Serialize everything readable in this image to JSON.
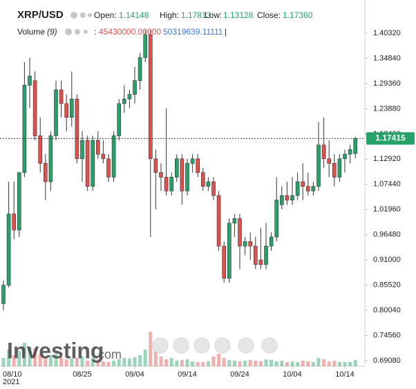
{
  "chart_data": {
    "type": "candlestick",
    "title": "XRP/USD",
    "header": {
      "open_label": "Open:",
      "open_value": "1.14148",
      "high_label": "High:",
      "high_value": "1.17813",
      "low_label": "Low:",
      "low_value": "1.13128",
      "close_label": "Close:",
      "close_value": "1.17360",
      "volume_label": "Volume",
      "volume_period": "(9)",
      "volume_sep": ":",
      "volume_value": "45430000.00000",
      "volume_ma_value": "50319639.11111",
      "volume_end": "|"
    },
    "watermark": "Investing",
    "watermark_suffix": ".com",
    "year_label": "2021",
    "up_color": "#26a269",
    "down_color": "#e0504d",
    "last_price": {
      "value": 1.17415,
      "label": "1.17415"
    },
    "x": [
      "2021-08-10",
      "2021-08-11",
      "2021-08-12",
      "2021-08-13",
      "2021-08-14",
      "2021-08-15",
      "2021-08-16",
      "2021-08-17",
      "2021-08-18",
      "2021-08-19",
      "2021-08-20",
      "2021-08-21",
      "2021-08-22",
      "2021-08-23",
      "2021-08-24",
      "2021-08-25",
      "2021-08-26",
      "2021-08-27",
      "2021-08-28",
      "2021-08-29",
      "2021-08-30",
      "2021-08-31",
      "2021-09-01",
      "2021-09-02",
      "2021-09-03",
      "2021-09-04",
      "2021-09-05",
      "2021-09-06",
      "2021-09-07",
      "2021-09-08",
      "2021-09-09",
      "2021-09-10",
      "2021-09-11",
      "2021-09-12",
      "2021-09-13",
      "2021-09-14",
      "2021-09-15",
      "2021-09-16",
      "2021-09-17",
      "2021-09-18",
      "2021-09-19",
      "2021-09-20",
      "2021-09-21",
      "2021-09-22",
      "2021-09-23",
      "2021-09-24",
      "2021-09-25",
      "2021-09-26",
      "2021-09-27",
      "2021-09-28",
      "2021-09-29",
      "2021-09-30",
      "2021-10-01",
      "2021-10-02",
      "2021-10-03",
      "2021-10-04",
      "2021-10-05",
      "2021-10-06",
      "2021-10-07",
      "2021-10-08",
      "2021-10-09",
      "2021-10-10",
      "2021-10-11",
      "2021-10-12",
      "2021-10-13",
      "2021-10-14",
      "2021-10-15",
      "2021-10-16"
    ],
    "open": [
      0.815,
      0.855,
      1.01,
      0.975,
      1.1,
      1.29,
      1.3,
      1.18,
      1.12,
      1.08,
      1.18,
      1.28,
      1.25,
      1.22,
      1.26,
      1.13,
      1.17,
      1.07,
      1.17,
      1.14,
      1.13,
      1.09,
      1.18,
      1.25,
      1.26,
      1.27,
      1.3,
      1.35,
      1.4,
      1.13,
      1.1,
      1.09,
      1.06,
      1.09,
      1.13,
      1.06,
      1.12,
      1.13,
      1.1,
      1.07,
      1.08,
      1.05,
      0.94,
      0.87,
      0.99,
      1.0,
      0.94,
      0.95,
      0.94,
      0.91,
      0.9,
      0.94,
      0.96,
      1.03,
      1.05,
      1.04,
      1.05,
      1.08,
      1.07,
      1.06,
      1.07,
      1.16,
      1.13,
      1.12,
      1.09,
      1.13,
      1.14,
      1.14148
    ],
    "high": [
      0.865,
      1.08,
      1.08,
      1.1,
      1.34,
      1.35,
      1.32,
      1.22,
      1.14,
      1.19,
      1.3,
      1.3,
      1.27,
      1.32,
      1.27,
      1.19,
      1.18,
      1.18,
      1.19,
      1.17,
      1.14,
      1.19,
      1.26,
      1.29,
      1.28,
      1.33,
      1.36,
      1.41,
      1.41,
      1.15,
      1.12,
      1.24,
      1.1,
      1.14,
      1.14,
      1.13,
      1.14,
      1.14,
      1.11,
      1.09,
      1.09,
      1.06,
      0.95,
      1.0,
      1.01,
      1.01,
      0.96,
      0.97,
      0.96,
      0.98,
      0.99,
      0.97,
      1.09,
      1.07,
      1.08,
      1.09,
      1.1,
      1.12,
      1.1,
      1.08,
      1.21,
      1.22,
      1.17,
      1.14,
      1.14,
      1.15,
      1.16,
      1.17813
    ],
    "low": [
      0.8,
      0.85,
      0.955,
      0.96,
      1.09,
      1.24,
      1.17,
      1.1,
      1.04,
      1.06,
      1.17,
      1.22,
      1.19,
      1.2,
      1.12,
      1.08,
      1.06,
      1.06,
      1.13,
      1.12,
      1.08,
      1.08,
      1.17,
      1.23,
      1.24,
      1.25,
      1.28,
      1.34,
      0.96,
      1.02,
      1.06,
      1.05,
      1.05,
      1.08,
      1.03,
      1.05,
      1.1,
      1.09,
      1.06,
      1.06,
      1.04,
      0.93,
      0.86,
      0.86,
      0.96,
      0.89,
      0.92,
      0.91,
      0.89,
      0.89,
      0.89,
      0.93,
      0.95,
      1.02,
      1.03,
      1.03,
      1.04,
      1.04,
      1.05,
      1.05,
      1.06,
      1.11,
      1.09,
      1.07,
      1.08,
      1.1,
      1.12,
      1.13128
    ],
    "close": [
      0.855,
      1.01,
      0.975,
      1.1,
      1.29,
      1.31,
      1.18,
      1.12,
      1.08,
      1.18,
      1.28,
      1.25,
      1.22,
      1.26,
      1.13,
      1.17,
      1.07,
      1.17,
      1.14,
      1.13,
      1.09,
      1.18,
      1.25,
      1.26,
      1.27,
      1.3,
      1.35,
      1.4,
      1.13,
      1.1,
      1.09,
      1.06,
      1.09,
      1.13,
      1.06,
      1.12,
      1.13,
      1.1,
      1.07,
      1.08,
      1.05,
      0.94,
      0.87,
      0.99,
      1.0,
      0.94,
      0.95,
      0.94,
      0.9,
      0.9,
      0.94,
      0.96,
      1.04,
      1.05,
      1.04,
      1.05,
      1.08,
      1.07,
      1.06,
      1.07,
      1.16,
      1.13,
      1.12,
      1.09,
      1.13,
      1.14,
      1.15,
      1.1736
    ],
    "volume": [
      60000000,
      120000000,
      80000000,
      110000000,
      170000000,
      140000000,
      130000000,
      90000000,
      70000000,
      80000000,
      90000000,
      60000000,
      50000000,
      55000000,
      60000000,
      70000000,
      40000000,
      60000000,
      50000000,
      35000000,
      30000000,
      40000000,
      50000000,
      60000000,
      55000000,
      65000000,
      80000000,
      120000000,
      250000000,
      140000000,
      70000000,
      50000000,
      60000000,
      40000000,
      45000000,
      50000000,
      35000000,
      30000000,
      30000000,
      35000000,
      70000000,
      90000000,
      60000000,
      45000000,
      40000000,
      35000000,
      40000000,
      45000000,
      40000000,
      35000000,
      50000000,
      45000000,
      35000000,
      40000000,
      30000000,
      35000000,
      30000000,
      40000000,
      35000000,
      30000000,
      60000000,
      50000000,
      35000000,
      40000000,
      30000000,
      30000000,
      30000000,
      45430000
    ],
    "ylim": [
      0.6788,
      1.4633
    ],
    "yticks": [
      {
        "value": 1.4032,
        "label": "1.40320"
      },
      {
        "value": 1.3484,
        "label": "1.34840"
      },
      {
        "value": 1.2936,
        "label": "1.29360"
      },
      {
        "value": 1.2388,
        "label": "1.23880"
      },
      {
        "value": 1.184,
        "label": "1.18400"
      },
      {
        "value": 1.1292,
        "label": "1.12920"
      },
      {
        "value": 1.0744,
        "label": "1.07440"
      },
      {
        "value": 1.0196,
        "label": "1.01960"
      },
      {
        "value": 0.9648,
        "label": "0.96480"
      },
      {
        "value": 0.91,
        "label": "0.91000"
      },
      {
        "value": 0.8552,
        "label": "0.85520"
      },
      {
        "value": 0.8004,
        "label": "0.80040"
      },
      {
        "value": 0.7456,
        "label": "0.74560"
      },
      {
        "value": 0.6908,
        "label": "0.69080"
      }
    ],
    "xticks": [
      {
        "value": "2021-08-10",
        "label": "08/10"
      },
      {
        "value": "2021-08-25",
        "label": "08/25"
      },
      {
        "value": "2021-09-04",
        "label": "09/04"
      },
      {
        "value": "2021-09-14",
        "label": "09/14"
      },
      {
        "value": "2021-09-24",
        "label": "09/24"
      },
      {
        "value": "2021-10-04",
        "label": "10/04"
      },
      {
        "value": "2021-10-14",
        "label": "10/14"
      }
    ]
  }
}
